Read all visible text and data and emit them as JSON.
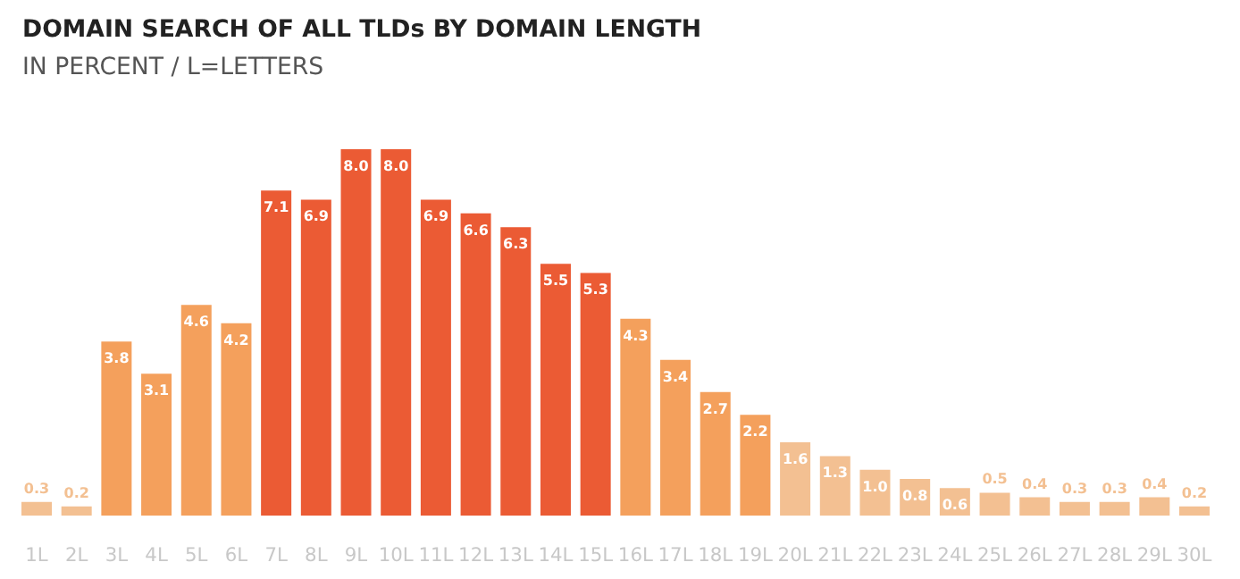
{
  "chart_data": {
    "type": "bar",
    "title": "DOMAIN SEARCH OF ALL TLDs BY DOMAIN LENGTH",
    "subtitle": "IN PERCENT / L=LETTERS",
    "categories": [
      "1L",
      "2L",
      "3L",
      "4L",
      "5L",
      "6L",
      "7L",
      "8L",
      "9L",
      "10L",
      "11L",
      "12L",
      "13L",
      "14L",
      "15L",
      "16L",
      "17L",
      "18L",
      "19L",
      "20L",
      "21L",
      "22L",
      "23L",
      "24L",
      "25L",
      "26L",
      "27L",
      "28L",
      "29L",
      "30L"
    ],
    "values": [
      0.3,
      0.2,
      3.8,
      3.1,
      4.6,
      4.2,
      7.1,
      6.9,
      8.0,
      8.0,
      6.9,
      6.6,
      6.3,
      5.5,
      5.3,
      4.3,
      3.4,
      2.7,
      2.2,
      1.6,
      1.3,
      1.0,
      0.8,
      0.6,
      0.5,
      0.4,
      0.3,
      0.3,
      0.4,
      0.2
    ],
    "colors": [
      "#f3c092",
      "#f3c092",
      "#f4a05c",
      "#f4a05c",
      "#f4a05c",
      "#f4a05c",
      "#eb5b34",
      "#eb5b34",
      "#eb5b34",
      "#eb5b34",
      "#eb5b34",
      "#eb5b34",
      "#eb5b34",
      "#eb5b34",
      "#eb5b34",
      "#f4a05c",
      "#f4a05c",
      "#f4a05c",
      "#f4a05c",
      "#f3c092",
      "#f3c092",
      "#f3c092",
      "#f3c092",
      "#f3c092",
      "#f3c092",
      "#f3c092",
      "#f3c092",
      "#f3c092",
      "#f3c092",
      "#f3c092"
    ],
    "value_labels": [
      "0.3",
      "0.2",
      "3.8",
      "3.1",
      "4.6",
      "4.2",
      "7.1",
      "6.9",
      "8.0",
      "8.0",
      "6.9",
      "6.6",
      "6.3",
      "5.5",
      "5.3",
      "4.3",
      "3.4",
      "2.7",
      "2.2",
      "1.6",
      "1.3",
      "1.0",
      "0.8",
      "0.6",
      "0.5",
      "0.4",
      "0.3",
      "0.3",
      "0.4",
      "0.2"
    ],
    "grid": false
  }
}
